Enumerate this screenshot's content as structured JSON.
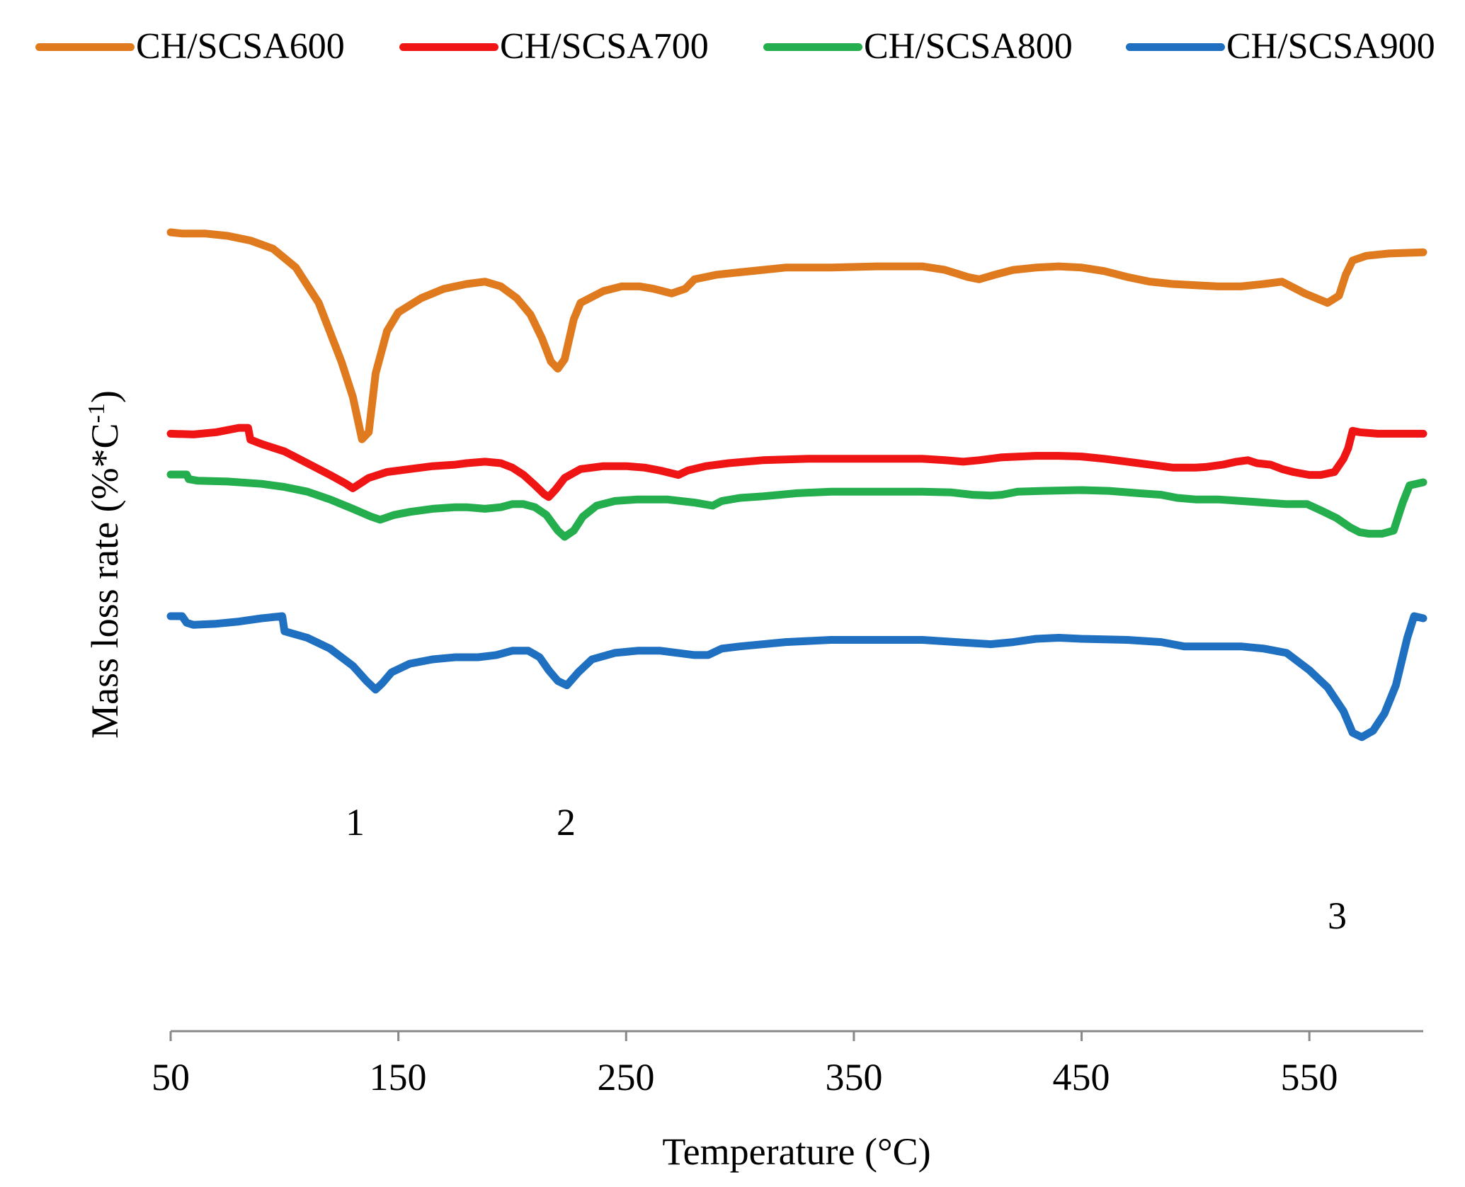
{
  "chart_data": {
    "type": "line",
    "title": "",
    "xlabel": "Temperature (°C)",
    "ylabel": "Mass loss rate (%*C",
    "ylabel_superscript": "-1",
    "ylabel_close": ")",
    "xlim": [
      50,
      600
    ],
    "x_ticks": [
      "50",
      "150",
      "250",
      "350",
      "450",
      "550"
    ],
    "y_ticks": [],
    "grid": false,
    "legend_position": "top",
    "annotations": [
      "1",
      "2",
      "3"
    ],
    "series": [
      {
        "name": "CH/SCSA600",
        "color": "#E07A1F",
        "points": [
          [
            50,
            100
          ],
          [
            55,
            99.5
          ],
          [
            65,
            99.5
          ],
          [
            75,
            98.5
          ],
          [
            85,
            96.5
          ],
          [
            95,
            93
          ],
          [
            105,
            85
          ],
          [
            115,
            70
          ],
          [
            125,
            45
          ],
          [
            130,
            30
          ],
          [
            134,
            12
          ],
          [
            137,
            15
          ],
          [
            140,
            40
          ],
          [
            145,
            58
          ],
          [
            150,
            66
          ],
          [
            160,
            72
          ],
          [
            170,
            76
          ],
          [
            180,
            78
          ],
          [
            188,
            79
          ],
          [
            195,
            77
          ],
          [
            202,
            72
          ],
          [
            208,
            65
          ],
          [
            213,
            55
          ],
          [
            217,
            45
          ],
          [
            220,
            42
          ],
          [
            223,
            46
          ],
          [
            227,
            63
          ],
          [
            230,
            70
          ],
          [
            240,
            75
          ],
          [
            248,
            77
          ],
          [
            256,
            77
          ],
          [
            262,
            76
          ],
          [
            270,
            74
          ],
          [
            276,
            76
          ],
          [
            280,
            80
          ],
          [
            290,
            82
          ],
          [
            300,
            83
          ],
          [
            310,
            84
          ],
          [
            320,
            85
          ],
          [
            340,
            85
          ],
          [
            360,
            85.5
          ],
          [
            380,
            85.5
          ],
          [
            390,
            84
          ],
          [
            400,
            81
          ],
          [
            405,
            80
          ],
          [
            412,
            82
          ],
          [
            420,
            84
          ],
          [
            430,
            85
          ],
          [
            440,
            85.5
          ],
          [
            450,
            85
          ],
          [
            460,
            83.5
          ],
          [
            470,
            81
          ],
          [
            480,
            79
          ],
          [
            490,
            78
          ],
          [
            500,
            77.5
          ],
          [
            510,
            77
          ],
          [
            520,
            77
          ],
          [
            530,
            78
          ],
          [
            538,
            79
          ],
          [
            542,
            77
          ],
          [
            548,
            74
          ],
          [
            553,
            72
          ],
          [
            558,
            70
          ],
          [
            563,
            73
          ],
          [
            566,
            82
          ],
          [
            569,
            88
          ],
          [
            575,
            90
          ],
          [
            585,
            91
          ],
          [
            600,
            91.5
          ]
        ]
      },
      {
        "name": "CH/SCSA700",
        "color": "#F01515",
        "points": [
          [
            50,
            70
          ],
          [
            60,
            69.5
          ],
          [
            70,
            71
          ],
          [
            80,
            74
          ],
          [
            84,
            74
          ],
          [
            85,
            66
          ],
          [
            90,
            63
          ],
          [
            100,
            58
          ],
          [
            110,
            50
          ],
          [
            120,
            42
          ],
          [
            127,
            36
          ],
          [
            130,
            33
          ],
          [
            133,
            36
          ],
          [
            137,
            40
          ],
          [
            145,
            44
          ],
          [
            155,
            46
          ],
          [
            165,
            48
          ],
          [
            175,
            49
          ],
          [
            180,
            50
          ],
          [
            188,
            51
          ],
          [
            195,
            50
          ],
          [
            200,
            47
          ],
          [
            205,
            42
          ],
          [
            210,
            35
          ],
          [
            214,
            29
          ],
          [
            216,
            27
          ],
          [
            219,
            32
          ],
          [
            223,
            40
          ],
          [
            230,
            46
          ],
          [
            240,
            48
          ],
          [
            250,
            48
          ],
          [
            258,
            47
          ],
          [
            265,
            45
          ],
          [
            273,
            42
          ],
          [
            277,
            45
          ],
          [
            285,
            48
          ],
          [
            295,
            50
          ],
          [
            310,
            52
          ],
          [
            330,
            53
          ],
          [
            350,
            53
          ],
          [
            370,
            53
          ],
          [
            380,
            53
          ],
          [
            390,
            52
          ],
          [
            398,
            51
          ],
          [
            405,
            52
          ],
          [
            415,
            54
          ],
          [
            430,
            55
          ],
          [
            440,
            55
          ],
          [
            450,
            54.5
          ],
          [
            460,
            53
          ],
          [
            470,
            51
          ],
          [
            480,
            49
          ],
          [
            490,
            47
          ],
          [
            495,
            47
          ],
          [
            500,
            47
          ],
          [
            505,
            47.5
          ],
          [
            512,
            49
          ],
          [
            518,
            51
          ],
          [
            523,
            52
          ],
          [
            527,
            50
          ],
          [
            533,
            49
          ],
          [
            538,
            46
          ],
          [
            543,
            44
          ],
          [
            550,
            42
          ],
          [
            555,
            42
          ],
          [
            561,
            44
          ],
          [
            565,
            53
          ],
          [
            567,
            60
          ],
          [
            569,
            72
          ],
          [
            572,
            71
          ],
          [
            580,
            70
          ],
          [
            590,
            70
          ],
          [
            600,
            70
          ]
        ]
      },
      {
        "name": "CH/SCSA800",
        "color": "#24AE4E",
        "points": [
          [
            50,
            100
          ],
          [
            57,
            100
          ],
          [
            58,
            97
          ],
          [
            62,
            96
          ],
          [
            75,
            95.5
          ],
          [
            90,
            94
          ],
          [
            100,
            92
          ],
          [
            110,
            89
          ],
          [
            120,
            84
          ],
          [
            130,
            78
          ],
          [
            138,
            73
          ],
          [
            142,
            71
          ],
          [
            148,
            74
          ],
          [
            155,
            76
          ],
          [
            165,
            78
          ],
          [
            175,
            79
          ],
          [
            180,
            79
          ],
          [
            188,
            78
          ],
          [
            195,
            79
          ],
          [
            200,
            81
          ],
          [
            205,
            81
          ],
          [
            210,
            79
          ],
          [
            215,
            74
          ],
          [
            220,
            64
          ],
          [
            223,
            60
          ],
          [
            227,
            64
          ],
          [
            231,
            73
          ],
          [
            237,
            80
          ],
          [
            245,
            83
          ],
          [
            255,
            84
          ],
          [
            268,
            84
          ],
          [
            280,
            82
          ],
          [
            288,
            80
          ],
          [
            292,
            83
          ],
          [
            300,
            85
          ],
          [
            310,
            86
          ],
          [
            325,
            88
          ],
          [
            340,
            89
          ],
          [
            360,
            89
          ],
          [
            380,
            89
          ],
          [
            393,
            88.5
          ],
          [
            402,
            87
          ],
          [
            410,
            86.5
          ],
          [
            415,
            87
          ],
          [
            422,
            89
          ],
          [
            433,
            89.5
          ],
          [
            450,
            90
          ],
          [
            462,
            89.5
          ],
          [
            475,
            88
          ],
          [
            485,
            87
          ],
          [
            492,
            85
          ],
          [
            500,
            84
          ],
          [
            510,
            84
          ],
          [
            520,
            83
          ],
          [
            530,
            82
          ],
          [
            540,
            81
          ],
          [
            549,
            81
          ],
          [
            555,
            77
          ],
          [
            562,
            72
          ],
          [
            568,
            66
          ],
          [
            572,
            63
          ],
          [
            576,
            62
          ],
          [
            582,
            62
          ],
          [
            587,
            64
          ],
          [
            591,
            82
          ],
          [
            594,
            93
          ],
          [
            600,
            95
          ]
        ]
      },
      {
        "name": "CH/SCSA900",
        "color": "#1F70C1",
        "points": [
          [
            50,
            100
          ],
          [
            55,
            100
          ],
          [
            57,
            97
          ],
          [
            60,
            96
          ],
          [
            70,
            96.5
          ],
          [
            80,
            97.5
          ],
          [
            90,
            99
          ],
          [
            99,
            100
          ],
          [
            100,
            93
          ],
          [
            110,
            90
          ],
          [
            120,
            85
          ],
          [
            130,
            77
          ],
          [
            136,
            70
          ],
          [
            140,
            66
          ],
          [
            143,
            69
          ],
          [
            147,
            74
          ],
          [
            155,
            78
          ],
          [
            165,
            80
          ],
          [
            175,
            81
          ],
          [
            185,
            81
          ],
          [
            193,
            82
          ],
          [
            200,
            84
          ],
          [
            207,
            84
          ],
          [
            212,
            81
          ],
          [
            216,
            75
          ],
          [
            220,
            70
          ],
          [
            224,
            68
          ],
          [
            229,
            74
          ],
          [
            235,
            80
          ],
          [
            245,
            83
          ],
          [
            255,
            84
          ],
          [
            265,
            84
          ],
          [
            280,
            82
          ],
          [
            286,
            82
          ],
          [
            292,
            85
          ],
          [
            300,
            86
          ],
          [
            320,
            88
          ],
          [
            340,
            89
          ],
          [
            360,
            89
          ],
          [
            380,
            89
          ],
          [
            395,
            88
          ],
          [
            410,
            87
          ],
          [
            420,
            88
          ],
          [
            430,
            89.5
          ],
          [
            440,
            90
          ],
          [
            450,
            89.5
          ],
          [
            470,
            89
          ],
          [
            485,
            88
          ],
          [
            495,
            86
          ],
          [
            505,
            86
          ],
          [
            520,
            86
          ],
          [
            530,
            85
          ],
          [
            540,
            83
          ],
          [
            550,
            75
          ],
          [
            558,
            67
          ],
          [
            565,
            56
          ],
          [
            569,
            46
          ],
          [
            573,
            44
          ],
          [
            578,
            47
          ],
          [
            583,
            55
          ],
          [
            588,
            68
          ],
          [
            593,
            90
          ],
          [
            596,
            100
          ],
          [
            600,
            99
          ]
        ]
      }
    ]
  }
}
